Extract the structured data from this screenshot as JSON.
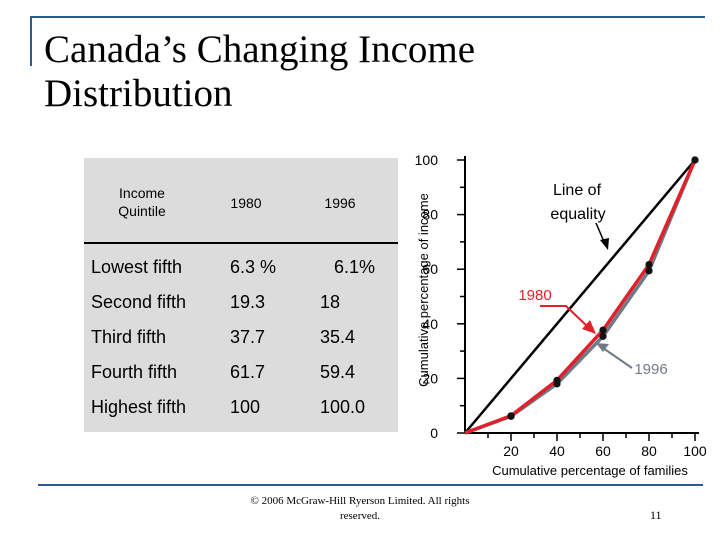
{
  "slide": {
    "title": "Canada’s Changing Income Distribution",
    "copyright": "© 2006 McGraw-Hill Ryerson Limited. All rights reserved.",
    "page_number": "11"
  },
  "table": {
    "headers": [
      "Income Quintile",
      "1980",
      "1996"
    ],
    "rows": [
      [
        "Lowest fifth",
        "6.3 %",
        "6.1%"
      ],
      [
        "Second fifth",
        "19.3",
        "18"
      ],
      [
        "Third fifth",
        "37.7",
        "35.4"
      ],
      [
        "Fourth fifth",
        "61.7",
        "59.4"
      ],
      [
        "Highest fifth",
        "100",
        "100.0"
      ]
    ],
    "panel_color": "#dcdcdc"
  },
  "chart_data": {
    "type": "line",
    "ylabel": "Cumulative percentage of income",
    "xlabel": "Cumulative percentage of families",
    "x_ticks": [
      "20",
      "40",
      "60",
      "80",
      "100"
    ],
    "y_ticks": [
      "0",
      "20",
      "40",
      "60",
      "80",
      "100"
    ],
    "xlim": [
      0,
      100
    ],
    "ylim": [
      0,
      100
    ],
    "x": [
      0,
      20,
      40,
      60,
      80,
      100
    ],
    "series": [
      {
        "name": "1980",
        "values": [
          0,
          6.3,
          19.3,
          37.7,
          61.7,
          100
        ],
        "color": "#e0202a"
      },
      {
        "name": "1996",
        "values": [
          0,
          6.1,
          18,
          35.4,
          59.4,
          100
        ],
        "color": "#6f7a86"
      }
    ],
    "equality_line": {
      "label": "Line of equality",
      "values": [
        0,
        100
      ]
    },
    "annotations": [
      "Line of equality",
      "1980",
      "1996"
    ]
  }
}
